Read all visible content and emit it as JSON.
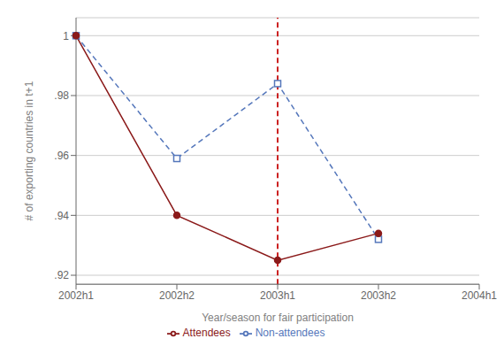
{
  "chart_data": {
    "type": "line",
    "categories": [
      "2002h1",
      "2002h2",
      "2003h1",
      "2003h2",
      "2004h1"
    ],
    "series": [
      {
        "name": "Non-attendees",
        "color": "#5577bb",
        "values": [
          1.0,
          0.959,
          0.984,
          0.932,
          null
        ],
        "marker": "square",
        "line_style": "dashed"
      },
      {
        "name": "Attendees",
        "color": "#8b1a1a",
        "values": [
          1.0,
          0.94,
          0.925,
          0.934,
          null
        ],
        "marker": "circle",
        "line_style": "solid"
      }
    ],
    "xlabel": "Year/season for fair participation",
    "ylabel": "# of exporting countries in t+1",
    "ylim": [
      0.917,
      1.006
    ],
    "yticks": [
      {
        "value": 0.92,
        "label": ".92"
      },
      {
        "value": 0.94,
        "label": ".94"
      },
      {
        "value": 0.96,
        "label": ".96"
      },
      {
        "value": 0.98,
        "label": ".98"
      },
      1
    ],
    "grid": true,
    "legend": "bottom",
    "vline": {
      "x": "2003h1",
      "color": "#cc2222",
      "line_style": "dashed"
    }
  }
}
